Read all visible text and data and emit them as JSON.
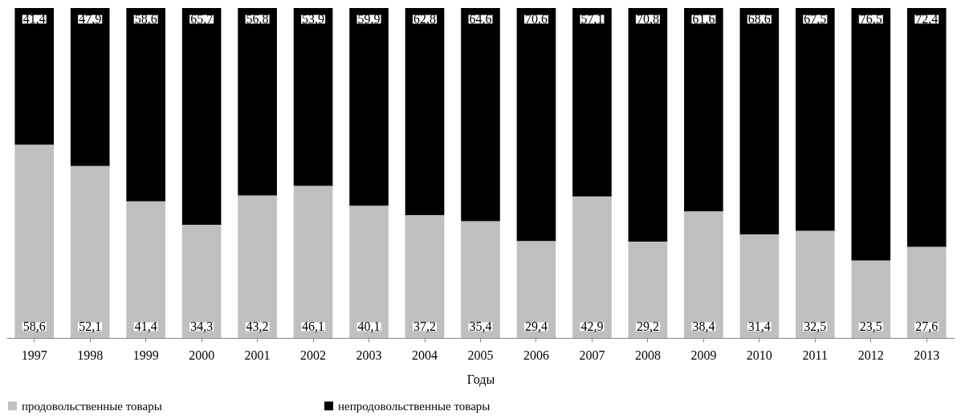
{
  "chart_data": {
    "type": "bar",
    "stacked": true,
    "xlabel": "Годы",
    "categories": [
      "1997",
      "1998",
      "1999",
      "2000",
      "2001",
      "2002",
      "2003",
      "2004",
      "2005",
      "2006",
      "2007",
      "2008",
      "2009",
      "2010",
      "2011",
      "2012",
      "2013"
    ],
    "series": [
      {
        "name": "продовольственные товары",
        "color": "#bfbfbf",
        "values": [
          58.6,
          52.1,
          41.4,
          34.3,
          43.2,
          46.1,
          40.1,
          37.2,
          35.4,
          29.4,
          42.9,
          29.2,
          38.4,
          31.4,
          32.5,
          23.5,
          27.6
        ],
        "value_labels": [
          "58,6",
          "52,1",
          "41,4",
          "34,3",
          "43,2",
          "46,1",
          "40,1",
          "37,2",
          "35,4",
          "29,4",
          "42,9",
          "29,2",
          "38,4",
          "31,4",
          "32,5",
          "23,5",
          "27,6"
        ]
      },
      {
        "name": "непродовольственные товары",
        "color": "#000000",
        "values": [
          41.4,
          47.9,
          58.6,
          65.7,
          56.8,
          53.9,
          59.9,
          62.8,
          64.6,
          70.6,
          57.1,
          70.8,
          61.6,
          68.6,
          67.5,
          76.5,
          72.4
        ],
        "value_labels": [
          "41,4",
          "47,9",
          "58,6",
          "65,7",
          "56,8",
          "53,9",
          "59,9",
          "62,8",
          "64,6",
          "70,6",
          "57,1",
          "70,8",
          "61,6",
          "68,6",
          "67,5",
          "76,5",
          "72,4"
        ]
      }
    ],
    "legend": "bottom"
  }
}
